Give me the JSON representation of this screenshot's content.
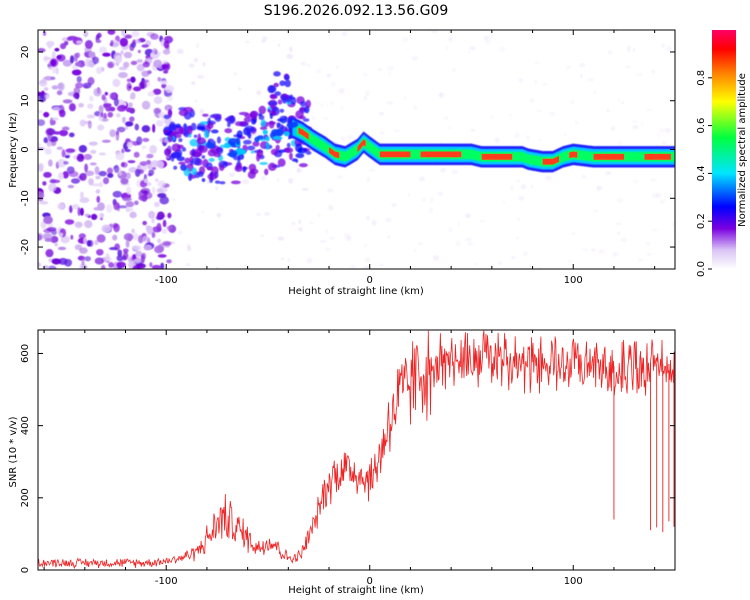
{
  "title": "S196.2026.092.13.56.G09",
  "chart_data": [
    {
      "type": "heatmap",
      "name": "spectrogram",
      "xlabel": "Height of straight line (km)",
      "ylabel": "Frequency (Hz)",
      "xlim": [
        -163,
        150
      ],
      "ylim": [
        -24.5,
        24.5
      ],
      "xticks": [
        -100,
        0,
        100
      ],
      "xtick_labels": [
        "-100",
        "0",
        "100"
      ],
      "yticks": [
        -20,
        -10,
        0,
        10,
        20
      ],
      "ytick_labels": [
        "-20",
        "-10",
        "0",
        "10",
        "20"
      ],
      "ridge": {
        "x": [
          -98,
          -90,
          -80,
          -70,
          -60,
          -50,
          -42,
          -38,
          -33,
          -28,
          -22,
          -17,
          -12,
          -6,
          -3,
          0,
          5,
          10,
          20,
          30,
          40,
          50,
          55,
          60,
          70,
          75,
          78,
          85,
          90,
          95,
          100,
          110,
          120,
          130,
          140,
          150
        ],
        "y": [
          2,
          1.5,
          0.5,
          0,
          0.5,
          2.5,
          4,
          4.5,
          3.5,
          2,
          0.5,
          -1,
          -1.5,
          0,
          1.5,
          0.5,
          -1,
          -1,
          -1,
          -1,
          -1,
          -1,
          -1.5,
          -1.5,
          -1.5,
          -1.5,
          -2,
          -2.5,
          -2.5,
          -1.5,
          -1,
          -1.5,
          -1.5,
          -1.5,
          -1.5,
          -1.5
        ]
      },
      "colorbar": {
        "label": "Normalized spectral amplitude",
        "range": [
          0,
          1
        ],
        "ticks": [
          0,
          0.2,
          0.4,
          0.6,
          0.8
        ],
        "tick_labels": [
          "0.0",
          "0.2",
          "0.4",
          "0.6",
          "0.8"
        ],
        "colors": [
          "#ffffff",
          "#d9c3f5",
          "#7a00e0",
          "#0000ff",
          "#00e5ff",
          "#00ff40",
          "#ffff00",
          "#ff8000",
          "#ff0000",
          "#ff0066"
        ]
      }
    },
    {
      "type": "line",
      "name": "snr",
      "xlabel": "Height of straight line (km)",
      "ylabel": "SNR (10 * v/v)",
      "xlim": [
        -163,
        150
      ],
      "ylim": [
        0,
        665
      ],
      "xticks": [
        -100,
        0,
        100
      ],
      "xtick_labels": [
        "-100",
        "0",
        "100"
      ],
      "yticks": [
        0,
        200,
        400,
        600
      ],
      "ytick_labels": [
        "0",
        "200",
        "400",
        "600"
      ],
      "color": "#ee2222",
      "envelope": {
        "x": [
          -163,
          -110,
          -100,
          -92,
          -85,
          -78,
          -72,
          -66,
          -60,
          -55,
          -50,
          -46,
          -42,
          -38,
          -34,
          -30,
          -26,
          -22,
          -18,
          -14,
          -10,
          -6,
          -2,
          2,
          6,
          10,
          14,
          18,
          22,
          26,
          30,
          40,
          50,
          60,
          70,
          80,
          90,
          100,
          110,
          120,
          130,
          140,
          150
        ],
        "y": [
          20,
          20,
          25,
          35,
          50,
          100,
          150,
          120,
          90,
          60,
          80,
          70,
          40,
          30,
          40,
          90,
          150,
          220,
          260,
          280,
          280,
          270,
          250,
          260,
          340,
          420,
          470,
          500,
          530,
          550,
          560,
          575,
          578,
          580,
          570,
          560,
          562,
          563,
          550,
          545,
          555,
          553,
          550
        ]
      },
      "dropouts": [
        {
          "x": 120,
          "y": 140
        },
        {
          "x": 138,
          "y": 110
        },
        {
          "x": 141,
          "y": 118
        },
        {
          "x": 144,
          "y": 105
        },
        {
          "x": 147,
          "y": 135
        },
        {
          "x": 149.5,
          "y": 120
        }
      ]
    }
  ]
}
